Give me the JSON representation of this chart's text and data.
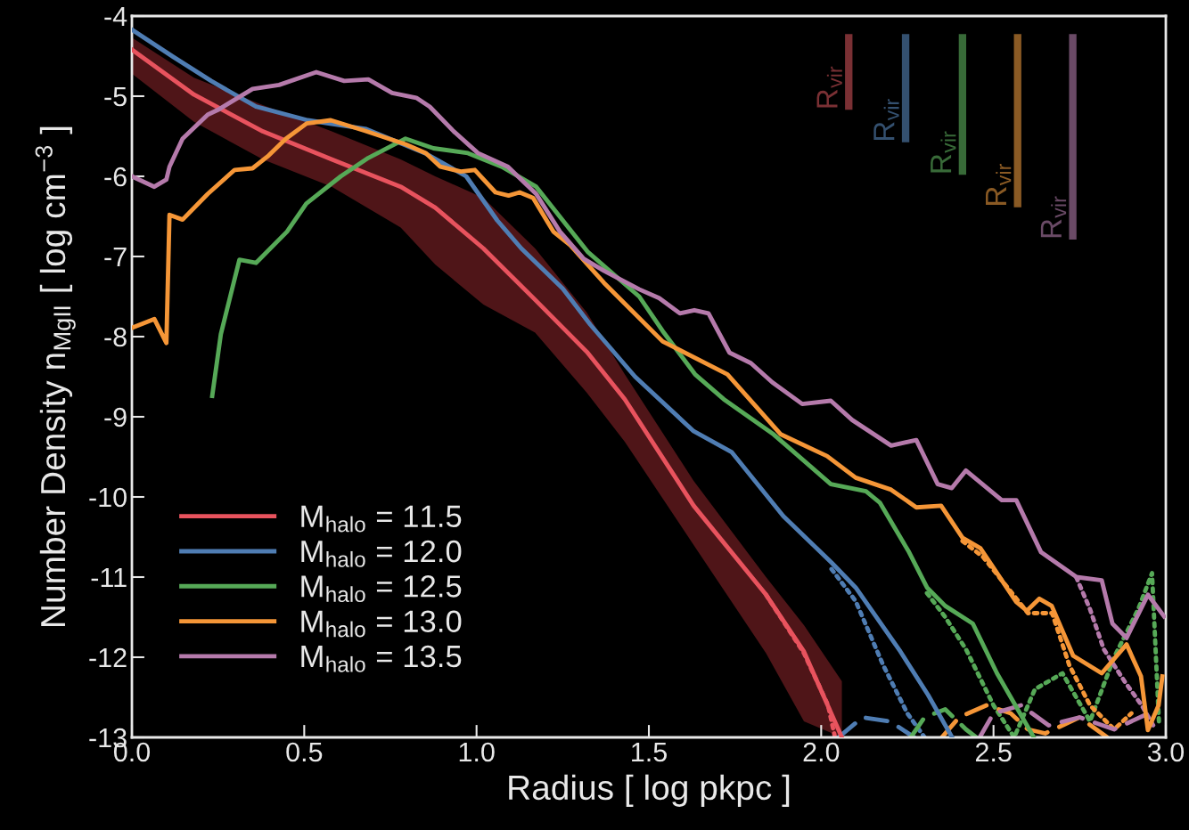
{
  "chart_data": {
    "type": "line",
    "xlabel": "Radius [ log pkpc ]",
    "ylabel": "Number Density n$_{MgII}$ [ log cm$^{−3}$ ]",
    "xlim": [
      0,
      3
    ],
    "ylim": [
      -13,
      -4
    ],
    "xticks": [
      {
        "value": 0,
        "label": "0.0"
      },
      {
        "value": 0.5,
        "label": "0.5"
      },
      {
        "value": 1,
        "label": "1.0"
      },
      {
        "value": 1.5,
        "label": "1.5"
      },
      {
        "value": 2,
        "label": "2.0"
      },
      {
        "value": 2.5,
        "label": "2.5"
      },
      {
        "value": 3,
        "label": "3.0"
      }
    ],
    "yticks": [
      -13,
      -12,
      -11,
      -10,
      -9,
      -8,
      -7,
      -6,
      -5,
      -4
    ],
    "grid": false,
    "legend": "bottom left",
    "series": [
      {
        "name": "M$_{halo}$ = 11.5",
        "color": "#e8535e",
        "x": [
          0,
          0.18,
          0.38,
          0.58,
          0.78,
          0.88,
          1.02,
          1.17,
          1.32,
          1.43,
          1.63,
          1.84,
          1.95,
          2.06
        ],
        "values": [
          -4.42,
          -4.98,
          -5.44,
          -5.79,
          -6.13,
          -6.39,
          -6.9,
          -7.54,
          -8.19,
          -8.78,
          -10.11,
          -11.22,
          -11.93,
          -13.0
        ],
        "upper": [
          -4.27,
          -4.77,
          -5.11,
          -5.44,
          -5.79,
          -6.0,
          -6.27,
          -6.9,
          -7.7,
          -8.47,
          -9.8,
          -11.0,
          -11.6,
          -12.3
        ],
        "lower": [
          -4.72,
          -5.32,
          -5.79,
          -6.13,
          -6.64,
          -7.1,
          -7.6,
          -7.95,
          -8.7,
          -9.31,
          -10.6,
          -11.95,
          -12.8,
          -13.0
        ]
      },
      {
        "name": "M$_{halo}$ = 12.0",
        "color": "#4f7db3",
        "x": [
          0,
          0.12,
          0.23,
          0.36,
          0.51,
          0.68,
          0.85,
          0.97,
          1.06,
          1.13,
          1.25,
          1.33,
          1.46,
          1.63,
          1.74,
          1.89,
          2.03,
          2.1,
          2.23,
          2.31,
          2.38
        ],
        "values": [
          -4.17,
          -4.51,
          -4.81,
          -5.13,
          -5.3,
          -5.41,
          -5.71,
          -6.0,
          -6.55,
          -6.9,
          -7.4,
          -7.85,
          -8.5,
          -9.18,
          -9.44,
          -10.24,
          -10.82,
          -11.13,
          -11.93,
          -12.47,
          -13.0
        ]
      },
      {
        "name": "M$_{halo}$ = 12.5",
        "color": "#56a957",
        "x": [
          0.233,
          0.258,
          0.312,
          0.36,
          0.45,
          0.506,
          0.606,
          0.686,
          0.794,
          0.875,
          0.975,
          1.073,
          1.173,
          1.322,
          1.472,
          1.54,
          1.634,
          1.717,
          1.862,
          2.028,
          2.13,
          2.17,
          2.255,
          2.307,
          2.36,
          2.44,
          2.51,
          2.617
        ],
        "values": [
          -8.74,
          -7.97,
          -7.04,
          -7.08,
          -6.69,
          -6.34,
          -6.0,
          -5.77,
          -5.53,
          -5.65,
          -5.71,
          -5.88,
          -6.13,
          -6.94,
          -7.5,
          -7.93,
          -8.47,
          -8.78,
          -9.22,
          -9.84,
          -9.93,
          -10.07,
          -10.69,
          -11.13,
          -11.36,
          -11.58,
          -12.2,
          -13.0
        ]
      },
      {
        "name": "M$_{halo}$ = 13.0",
        "color": "#f59637",
        "x": [
          0,
          0.065,
          0.1,
          0.109,
          0.147,
          0.22,
          0.298,
          0.35,
          0.397,
          0.447,
          0.507,
          0.577,
          0.675,
          0.794,
          0.853,
          0.895,
          0.954,
          0.995,
          1.055,
          1.093,
          1.125,
          1.164,
          1.223,
          1.272,
          1.37,
          1.54,
          1.728,
          1.883,
          2.017,
          2.1,
          2.203,
          2.276,
          2.348,
          2.41,
          2.462,
          2.566,
          2.597,
          2.633,
          2.669,
          2.731,
          2.814,
          2.886,
          2.928,
          2.948,
          2.979,
          2.99
        ],
        "values": [
          -7.89,
          -7.78,
          -8.08,
          -6.48,
          -6.54,
          -6.22,
          -5.92,
          -5.9,
          -5.74,
          -5.53,
          -5.34,
          -5.3,
          -5.43,
          -5.6,
          -5.71,
          -5.88,
          -5.94,
          -5.92,
          -6.2,
          -6.24,
          -6.2,
          -6.27,
          -6.69,
          -6.86,
          -7.33,
          -8.06,
          -8.47,
          -9.22,
          -9.49,
          -9.76,
          -9.91,
          -10.13,
          -10.11,
          -10.51,
          -10.64,
          -11.31,
          -11.42,
          -11.27,
          -11.36,
          -11.98,
          -12.2,
          -11.84,
          -12.24,
          -12.91,
          -12.6,
          -12.24
        ]
      },
      {
        "name": "M$_{halo}$ = 13.5",
        "color": "#b57aab",
        "x": [
          0,
          0.065,
          0.1,
          0.109,
          0.147,
          0.22,
          0.25,
          0.35,
          0.427,
          0.535,
          0.616,
          0.686,
          0.755,
          0.825,
          0.864,
          0.934,
          1.004,
          1.091,
          1.173,
          1.242,
          1.311,
          1.37,
          1.472,
          1.53,
          1.59,
          1.632,
          1.673,
          1.734,
          1.796,
          1.858,
          1.945,
          2.028,
          2.09,
          2.203,
          2.276,
          2.338,
          2.379,
          2.42,
          2.524,
          2.566,
          2.638,
          2.741,
          2.814,
          2.845,
          2.886,
          2.948,
          2.995
        ],
        "values": [
          -6.0,
          -6.13,
          -6.04,
          -5.88,
          -5.53,
          -5.23,
          -5.17,
          -4.91,
          -4.86,
          -4.7,
          -4.81,
          -4.79,
          -4.96,
          -5.02,
          -5.13,
          -5.44,
          -5.71,
          -5.88,
          -6.22,
          -6.69,
          -7.03,
          -7.18,
          -7.41,
          -7.52,
          -7.71,
          -7.67,
          -7.71,
          -8.2,
          -8.33,
          -8.57,
          -8.84,
          -8.8,
          -9.04,
          -9.36,
          -9.29,
          -9.84,
          -9.89,
          -9.67,
          -10.04,
          -10.04,
          -10.69,
          -11.0,
          -11.04,
          -11.58,
          -11.76,
          -11.22,
          -11.49
        ]
      },
      {
        "color": "#e8535e",
        "line_style": "dotted",
        "x": [
          1.84,
          1.95,
          2.02,
          2.04
        ],
        "values": [
          -11.22,
          -11.95,
          -12.6,
          -13.0
        ]
      },
      {
        "color": "#4f7db3",
        "line_style": "dotted",
        "x": [
          2.03,
          2.1,
          2.18,
          2.25,
          2.3
        ],
        "values": [
          -10.9,
          -11.3,
          -12.1,
          -12.7,
          -13.0
        ]
      },
      {
        "color": "#56a957",
        "line_style": "dotted",
        "x": [
          2.307,
          2.36,
          2.42,
          2.5,
          2.56,
          2.62,
          2.7,
          2.78,
          2.85,
          2.92,
          2.96,
          2.98
        ],
        "values": [
          -11.2,
          -11.5,
          -11.9,
          -12.6,
          -13.0,
          -12.4,
          -12.2,
          -12.8,
          -12.0,
          -11.4,
          -10.95,
          -12.8
        ]
      },
      {
        "color": "#f59637",
        "line_style": "dotted",
        "x": [
          2.41,
          2.47,
          2.6,
          2.67,
          2.72,
          2.78,
          2.85,
          2.9
        ],
        "values": [
          -10.55,
          -10.75,
          -11.45,
          -11.45,
          -12.1,
          -12.6,
          -12.9,
          -12.7
        ]
      },
      {
        "color": "#b57aab",
        "line_style": "dotted",
        "x": [
          2.74,
          2.78,
          2.82,
          2.88,
          2.93,
          2.97
        ],
        "values": [
          -11.0,
          -11.4,
          -11.9,
          -12.3,
          -12.6,
          -12.9
        ]
      },
      {
        "color": "#4f7db3",
        "line_style": "dashed",
        "x": [
          2.05,
          2.12,
          2.2,
          2.27
        ],
        "values": [
          -13.0,
          -12.75,
          -12.8,
          -13.0
        ]
      },
      {
        "color": "#56a957",
        "line_style": "dashed",
        "x": [
          2.26,
          2.3,
          2.36,
          2.42,
          2.45
        ],
        "values": [
          -13.0,
          -12.75,
          -12.65,
          -12.9,
          -13.0
        ]
      },
      {
        "color": "#f59637",
        "line_style": "dashed",
        "x": [
          2.35,
          2.4,
          2.48,
          2.55,
          2.6,
          2.65,
          2.75,
          2.83
        ],
        "values": [
          -13.0,
          -12.75,
          -12.6,
          -12.7,
          -12.9,
          -12.95,
          -12.75,
          -13.0
        ]
      },
      {
        "color": "#b57aab",
        "line_style": "dashed",
        "x": [
          2.46,
          2.5,
          2.58,
          2.66,
          2.75,
          2.85,
          2.95
        ],
        "values": [
          -13.0,
          -12.7,
          -12.6,
          -12.85,
          -12.75,
          -12.9,
          -12.7
        ]
      }
    ],
    "ref_lines": [
      {
        "axis": "x",
        "value": 2.08,
        "label": "R$_{vir}$",
        "color": "#7a3034"
      },
      {
        "axis": "x",
        "value": 2.245,
        "label": "R$_{vir}$",
        "color": "#34506f"
      },
      {
        "axis": "x",
        "value": 2.41,
        "label": "R$_{vir}$",
        "color": "#386a38"
      },
      {
        "axis": "x",
        "value": 2.57,
        "label": "R$_{vir}$",
        "color": "#8a5a24"
      },
      {
        "axis": "x",
        "value": 2.73,
        "label": "R$_{vir}$",
        "color": "#6a4a66"
      }
    ]
  }
}
